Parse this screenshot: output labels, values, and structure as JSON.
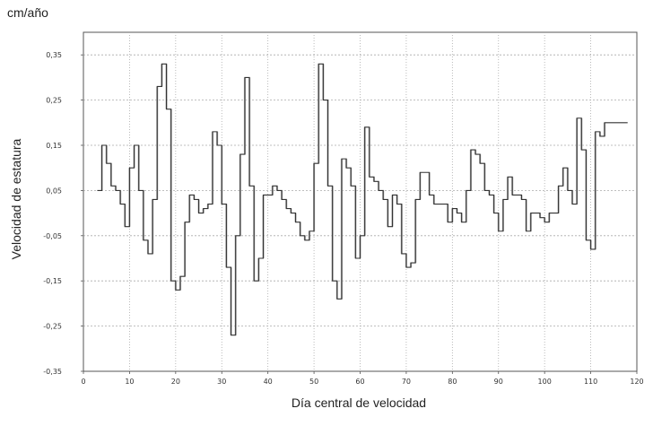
{
  "chart_data": {
    "type": "line",
    "step": true,
    "unit_label": "cm/año",
    "xlabel": "Día central de velocidad",
    "ylabel": "Velocidad de estatura",
    "xlim": [
      0,
      120
    ],
    "ylim": [
      -0.35,
      0.4
    ],
    "x_ticks": [
      0,
      10,
      20,
      30,
      40,
      50,
      60,
      70,
      80,
      90,
      100,
      110,
      120
    ],
    "y_ticks": [
      -0.35,
      -0.25,
      -0.15,
      -0.05,
      0.05,
      0.15,
      0.25,
      0.35
    ],
    "y_tick_labels": [
      "-0,35",
      "-0,25",
      "-0,15",
      "-0,05",
      "0,05",
      "0,15",
      "0,25",
      "0,35"
    ],
    "grid": true,
    "series": [
      {
        "color": "#333333",
        "highlight_color": "#bbbbbb",
        "x": [
          3,
          4,
          5,
          6,
          7,
          8,
          9,
          10,
          11,
          12,
          13,
          14,
          15,
          16,
          17,
          18,
          19,
          20,
          21,
          22,
          23,
          24,
          25,
          26,
          27,
          28,
          29,
          30,
          31,
          32,
          33,
          34,
          35,
          36,
          37,
          38,
          39,
          40,
          41,
          42,
          43,
          44,
          45,
          46,
          47,
          48,
          49,
          50,
          51,
          52,
          53,
          54,
          55,
          56,
          57,
          58,
          59,
          60,
          61,
          62,
          63,
          64,
          65,
          66,
          67,
          68,
          69,
          70,
          71,
          72,
          73,
          74,
          75,
          76,
          77,
          78,
          79,
          80,
          81,
          82,
          83,
          84,
          85,
          86,
          87,
          88,
          89,
          90,
          91,
          92,
          93,
          94,
          95,
          96,
          97,
          98,
          99,
          100,
          101,
          102,
          103,
          104,
          105,
          106,
          107,
          108,
          109,
          110,
          111,
          112,
          113,
          114,
          115,
          116,
          117
        ],
        "values": [
          0.05,
          0.15,
          0.11,
          0.06,
          0.05,
          0.02,
          -0.03,
          0.1,
          0.15,
          0.05,
          -0.06,
          -0.09,
          0.03,
          0.28,
          0.33,
          0.23,
          -0.15,
          -0.17,
          -0.14,
          -0.02,
          0.04,
          0.03,
          0.0,
          0.01,
          0.02,
          0.18,
          0.15,
          0.02,
          -0.12,
          -0.27,
          -0.05,
          0.13,
          0.3,
          0.06,
          -0.15,
          -0.1,
          0.04,
          0.04,
          0.06,
          0.05,
          0.03,
          0.01,
          0.0,
          -0.02,
          -0.05,
          -0.06,
          -0.04,
          0.11,
          0.33,
          0.25,
          0.06,
          -0.15,
          -0.19,
          0.12,
          0.1,
          0.06,
          -0.1,
          -0.05,
          0.19,
          0.08,
          0.07,
          0.05,
          0.03,
          -0.03,
          0.04,
          0.02,
          -0.09,
          -0.12,
          -0.11,
          0.03,
          0.09,
          0.09,
          0.04,
          0.02,
          0.02,
          0.02,
          -0.02,
          0.01,
          0.0,
          -0.02,
          0.05,
          0.14,
          0.13,
          0.11,
          0.05,
          0.04,
          0.0,
          -0.04,
          0.03,
          0.08,
          0.04,
          0.04,
          0.03,
          -0.04,
          0.0,
          0.0,
          -0.01,
          -0.02,
          0.0,
          0.0,
          0.06,
          0.1,
          0.05,
          0.02,
          0.21,
          0.14,
          -0.06,
          -0.08,
          0.18,
          0.17,
          0.2,
          0.2,
          0.2,
          0.2,
          0.2
        ]
      }
    ]
  }
}
